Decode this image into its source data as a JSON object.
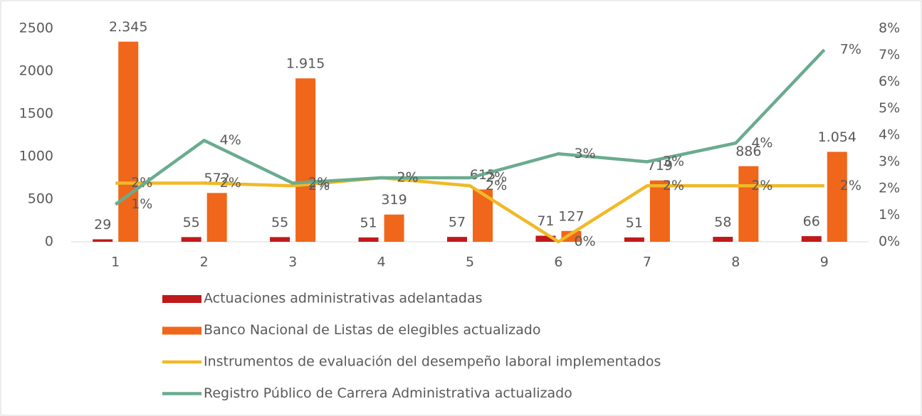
{
  "chart_data": {
    "type": "bar",
    "categories": [
      "1",
      "2",
      "3",
      "4",
      "5",
      "6",
      "7",
      "8",
      "9"
    ],
    "series": [
      {
        "name": "Actuaciones administrativas adelantadas",
        "type": "bar",
        "color": "#c0191b",
        "values": [
          29,
          55,
          55,
          51,
          57,
          71,
          51,
          58,
          66
        ]
      },
      {
        "name": "Banco Nacional de Listas de elegibles actualizado",
        "type": "bar",
        "color": "#f0661a",
        "values": [
          2345,
          572,
          1915,
          319,
          613,
          127,
          719,
          886,
          1054
        ],
        "value_labels": [
          "2.345",
          "572",
          "1.915",
          "319",
          "613",
          "127",
          "719",
          "886",
          "1.054"
        ]
      },
      {
        "name": "Instrumentos de evaluación del desempeño laboral implementados",
        "type": "line",
        "axis": "y2",
        "color": "#f0b928",
        "values": [
          2.2,
          2.2,
          2.1,
          2.4,
          2.1,
          0,
          2.1,
          2.1,
          2.1
        ],
        "value_labels": [
          "2%",
          "2%",
          "2%",
          "2%",
          "2%",
          "0%",
          "2%",
          "2%",
          "2%"
        ]
      },
      {
        "name": "Registro Público de Carrera Administrativa actualizado",
        "type": "line",
        "axis": "y2",
        "color": "#6aab8e",
        "values": [
          1.4,
          3.8,
          2.2,
          2.4,
          2.4,
          3.3,
          3.0,
          3.7,
          7.2
        ],
        "value_labels": [
          "1%",
          "4%",
          "2%",
          "2%",
          "2%",
          "3%",
          "3%",
          "4%",
          "7%"
        ]
      }
    ],
    "ylim": [
      0,
      2500
    ],
    "yticks": [
      0,
      500,
      1000,
      1500,
      2000,
      2500
    ],
    "y2lim": [
      0,
      8
    ],
    "y2ticks": [
      {
        "value": 0,
        "label": "0%"
      },
      {
        "value": 1,
        "label": "1%"
      },
      {
        "value": 2,
        "label": "2%"
      },
      {
        "value": 3,
        "label": "3%"
      },
      {
        "value": 4,
        "label": "4%"
      },
      {
        "value": 5,
        "label": "5%"
      },
      {
        "value": 6,
        "label": "6%"
      },
      {
        "value": 7,
        "label": "7%"
      },
      {
        "value": 8,
        "label": "8%"
      }
    ],
    "legend": "bottom"
  }
}
